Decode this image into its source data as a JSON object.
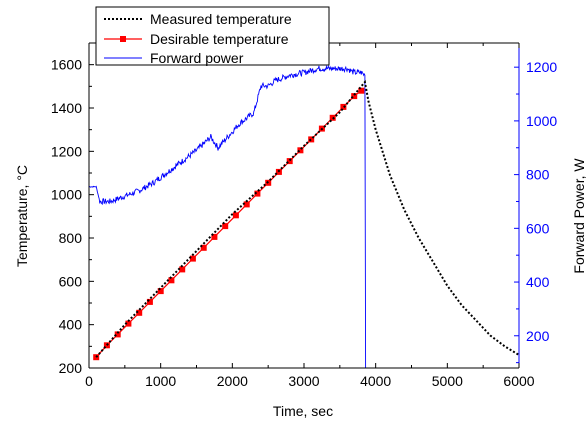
{
  "chart_data": {
    "type": "line",
    "xlabel": "Time, sec",
    "ylabel_left": "Temperature, °C",
    "ylabel_right": "Forward Power, W",
    "xlim": [
      0,
      6000
    ],
    "ylim_left": [
      200,
      1700
    ],
    "ylim_right": [
      80,
      1290
    ],
    "xticks": [
      0,
      1000,
      2000,
      3000,
      4000,
      5000,
      6000
    ],
    "yticks_left": [
      200,
      400,
      600,
      800,
      1000,
      1200,
      1400,
      1600
    ],
    "yticks_right": [
      200,
      400,
      600,
      800,
      1000,
      1200
    ],
    "legend_position": "top-left",
    "grid": false,
    "colors": {
      "measured": "#000000",
      "desirable": "#ff0000",
      "power": "#0000ff",
      "right_axis": "#0000ff"
    },
    "series": [
      {
        "name": "Measured temperature",
        "axis": "left",
        "style": "dotted",
        "x": [
          100,
          500,
          1000,
          1500,
          2000,
          2500,
          3000,
          3500,
          3850,
          3900,
          4000,
          4200,
          4400,
          4600,
          4800,
          5000,
          5200,
          5400,
          5600,
          5800,
          6000
        ],
        "y": [
          250,
          400,
          570,
          740,
          910,
          1060,
          1225,
          1380,
          1520,
          1430,
          1300,
          1090,
          930,
          800,
          690,
          580,
          490,
          420,
          350,
          300,
          260
        ]
      },
      {
        "name": "Desirable temperature",
        "axis": "left",
        "style": "line-square",
        "x": [
          100,
          250,
          400,
          550,
          700,
          850,
          1000,
          1150,
          1300,
          1450,
          1600,
          1750,
          1900,
          2050,
          2200,
          2350,
          2500,
          2650,
          2800,
          2950,
          3100,
          3250,
          3400,
          3550,
          3700,
          3800
        ],
        "y": [
          250,
          305,
          355,
          405,
          455,
          505,
          555,
          605,
          655,
          705,
          755,
          805,
          855,
          905,
          955,
          1005,
          1055,
          1105,
          1155,
          1205,
          1255,
          1305,
          1355,
          1405,
          1455,
          1480
        ]
      },
      {
        "name": "Forward power",
        "axis": "right",
        "style": "line",
        "x": [
          0,
          100,
          150,
          300,
          500,
          700,
          900,
          1100,
          1300,
          1500,
          1700,
          1800,
          1900,
          2000,
          2100,
          2200,
          2300,
          2350,
          2400,
          2500,
          2600,
          2800,
          3000,
          3200,
          3400,
          3600,
          3700,
          3800,
          3850,
          3860
        ],
        "y": [
          755,
          755,
          700,
          700,
          720,
          740,
          770,
          810,
          850,
          890,
          940,
          900,
          930,
          960,
          990,
          1010,
          1030,
          1080,
          1130,
          1130,
          1150,
          1170,
          1180,
          1195,
          1195,
          1195,
          1180,
          1180,
          1170,
          80
        ]
      }
    ]
  }
}
